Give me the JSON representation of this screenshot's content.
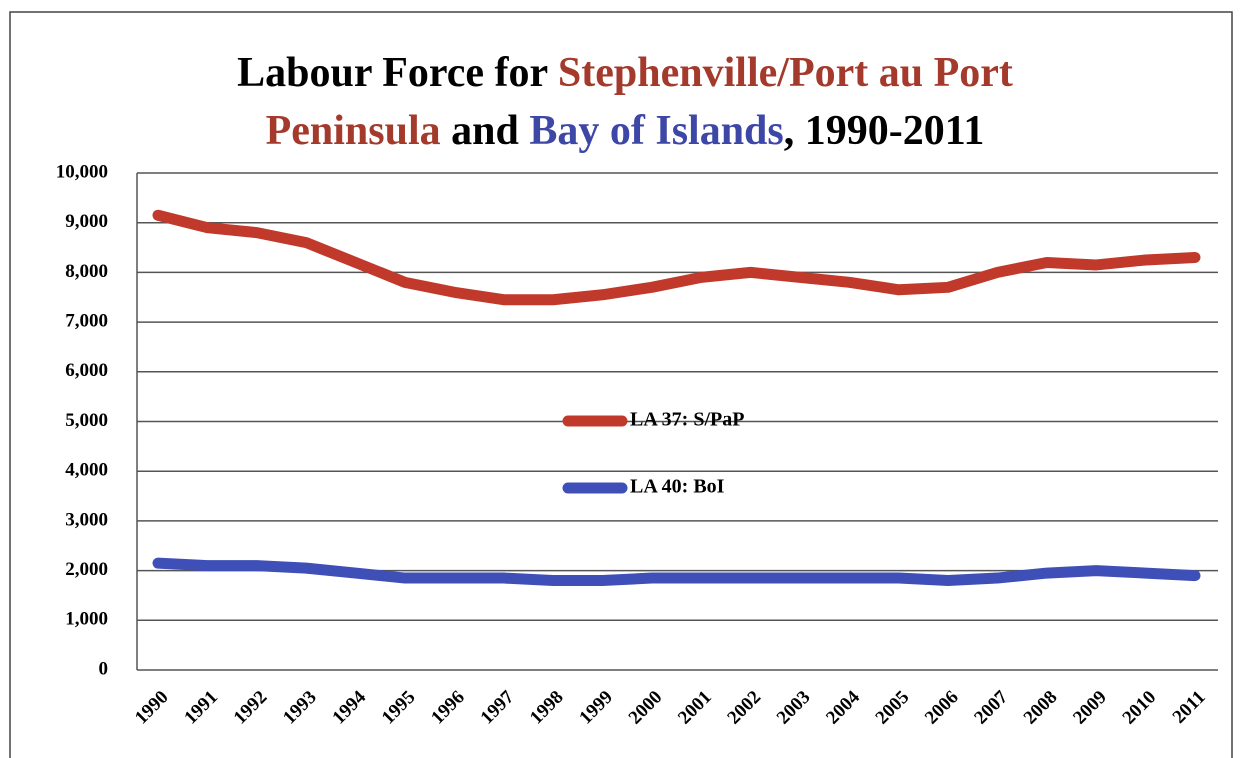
{
  "chart_data": {
    "type": "line",
    "title_lines": [
      [
        {
          "text": "Labour Force for ",
          "color": "#000000"
        },
        {
          "text": "Stephenville/Port au Port",
          "color": "#a33a2c"
        }
      ],
      [
        {
          "text": "Peninsula",
          "color": "#a33a2c"
        },
        {
          "text": " and ",
          "color": "#000000"
        },
        {
          "text": "Bay of Islands",
          "color": "#3d47a6"
        },
        {
          "text": ", 1990-2011",
          "color": "#000000"
        }
      ]
    ],
    "categories": [
      "1990",
      "1991",
      "1992",
      "1993",
      "1994",
      "1995",
      "1996",
      "1997",
      "1998",
      "1999",
      "2000",
      "2001",
      "2002",
      "2003",
      "2004",
      "2005",
      "2006",
      "2007",
      "2008",
      "2009",
      "2010",
      "2011"
    ],
    "series": [
      {
        "name": "LA 37: S/PaP",
        "color": "#c0392b",
        "values": [
          9150,
          8900,
          8800,
          8600,
          8200,
          7800,
          7600,
          7450,
          7450,
          7550,
          7700,
          7900,
          8000,
          7900,
          7800,
          7650,
          7700,
          8000,
          8200,
          8150,
          8250,
          8300
        ]
      },
      {
        "name": "LA 40: BoI",
        "color": "#3f4fb8",
        "values": [
          2150,
          2100,
          2100,
          2050,
          1950,
          1850,
          1850,
          1850,
          1800,
          1800,
          1850,
          1850,
          1850,
          1850,
          1850,
          1850,
          1800,
          1850,
          1950,
          2000,
          1950,
          1900
        ]
      }
    ],
    "ylim": [
      0,
      10000
    ],
    "yticks": [
      0,
      {
        "value": 1000,
        "label": "1,000"
      },
      {
        "value": 2000,
        "label": "2,000"
      },
      {
        "value": 3000,
        "label": "3,000"
      },
      {
        "value": 4000,
        "label": "4,000"
      },
      {
        "value": 5000,
        "label": "5,000"
      },
      {
        "value": 6000,
        "label": "6,000"
      },
      {
        "value": 7000,
        "label": "7,000"
      },
      {
        "value": 8000,
        "label": "8,000"
      },
      {
        "value": 9000,
        "label": "9,000"
      },
      {
        "value": 10000,
        "label": "10,000"
      }
    ],
    "grid": true
  }
}
